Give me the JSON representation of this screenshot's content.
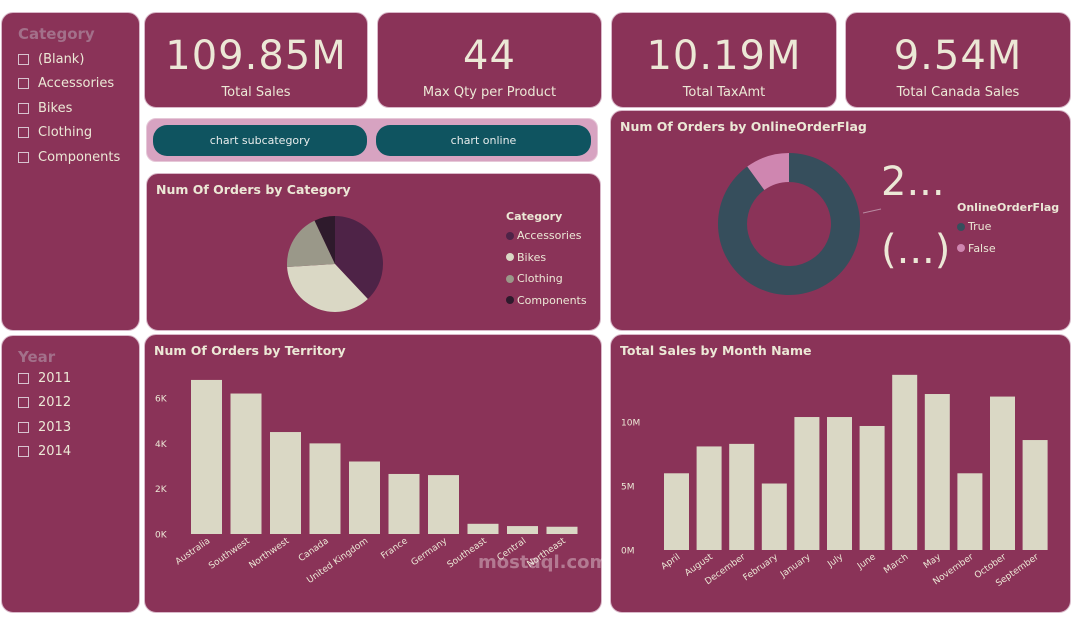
{
  "kpis": [
    {
      "value": "109.85M",
      "label": "Total Sales"
    },
    {
      "value": "44",
      "label": "Max Qty per Product"
    },
    {
      "value": "10.19M",
      "label": "Total TaxAmt"
    },
    {
      "value": "9.54M",
      "label": "Total Canada Sales"
    }
  ],
  "category_slicer": {
    "title": "Category",
    "items": [
      "(Blank)",
      "Accessories",
      "Bikes",
      "Clothing",
      "Components"
    ]
  },
  "year_slicer": {
    "title": "Year",
    "items": [
      "2011",
      "2012",
      "2013",
      "2014"
    ]
  },
  "buttons": {
    "subcategory": "chart subcategory",
    "online": "chart online"
  },
  "watermark": "mostaql.com",
  "colors": {
    "background": "#8a3358",
    "bar": "#dad8c5",
    "accessories": "#4e2347",
    "bikes": "#dad8c5",
    "clothing": "#9a9889",
    "components": "#2e1a2c",
    "online_true": "#364e5c",
    "online_false": "#cf86b0"
  },
  "chart_data": [
    {
      "type": "pie",
      "title": "Num Of Orders by Category",
      "legend_title": "Category",
      "legend_position": "right",
      "categories": [
        "Accessories",
        "Bikes",
        "Clothing",
        "Components"
      ],
      "values": [
        38,
        36,
        19,
        7
      ]
    },
    {
      "type": "pie",
      "donut": true,
      "title": "Num Of Orders by OnlineOrderFlag",
      "legend_title": "OnlineOrderFlag",
      "legend_position": "right",
      "categories": [
        "True",
        "False"
      ],
      "values": [
        90,
        10
      ],
      "data_labels": [
        "2...",
        "(...)"
      ]
    },
    {
      "type": "bar",
      "title": "Num Of Orders by Territory",
      "categories": [
        "Australia",
        "Southwest",
        "Northwest",
        "Canada",
        "United Kingdom",
        "France",
        "Germany",
        "Southeast",
        "Central",
        "Northeast"
      ],
      "values": [
        6800,
        6200,
        4500,
        4000,
        3200,
        2650,
        2600,
        450,
        350,
        320
      ],
      "ylim": [
        0,
        7000
      ],
      "y_ticks": [
        0,
        2000,
        4000,
        6000
      ],
      "y_tick_labels": [
        "0K",
        "2K",
        "4K",
        "6K"
      ],
      "grid": false
    },
    {
      "type": "bar",
      "title": "Total Sales by Month Name",
      "categories": [
        "April",
        "August",
        "December",
        "February",
        "January",
        "July",
        "June",
        "March",
        "May",
        "November",
        "October",
        "September"
      ],
      "values": [
        6000000,
        8100000,
        8300000,
        5200000,
        10400000,
        10400000,
        9700000,
        13700000,
        12200000,
        6000000,
        12000000,
        8600000
      ],
      "ylim": [
        0,
        14000000
      ],
      "y_ticks": [
        0,
        5000000,
        10000000
      ],
      "y_tick_labels": [
        "0M",
        "5M",
        "10M"
      ],
      "grid": false
    }
  ]
}
